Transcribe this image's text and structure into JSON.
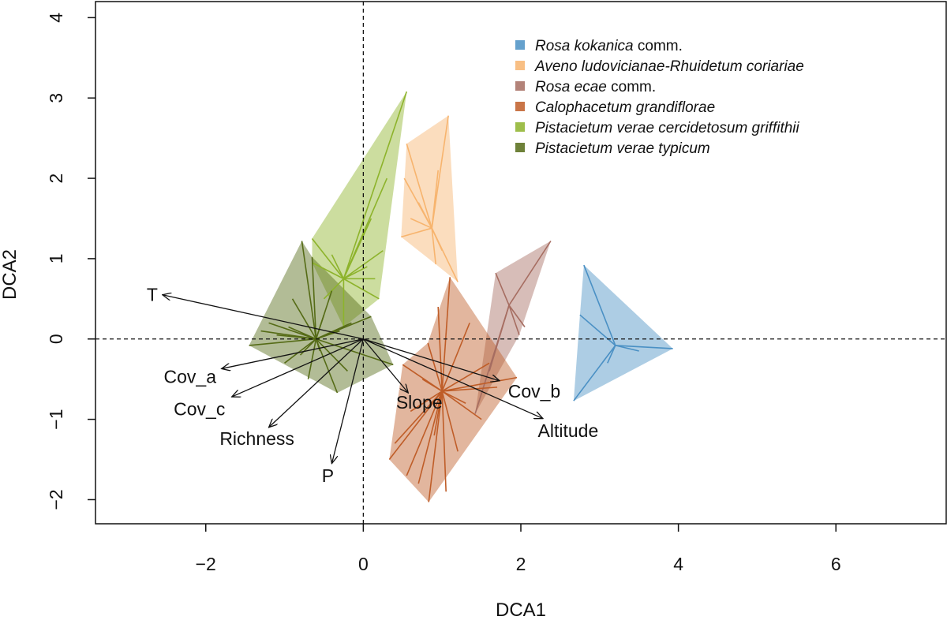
{
  "chart_data": {
    "type": "scatter",
    "subtype": "DCA ordination biplot with group convex hulls, spider lines to centroids and environmental vectors",
    "title": "",
    "xlabel": "DCA1",
    "ylabel": "DCA2",
    "xlim": [
      -3.4,
      7.4
    ],
    "ylim": [
      -2.3,
      4.2
    ],
    "xticks": [
      -2,
      0,
      2,
      4,
      6
    ],
    "yticks": [
      -2,
      -1,
      0,
      1,
      2,
      3,
      4
    ],
    "xtick_labels": [
      "−2",
      "0",
      "2",
      "4",
      "6"
    ],
    "ytick_labels": [
      "−2",
      "−1",
      "0",
      "1",
      "2",
      "3",
      "4"
    ],
    "grid": false,
    "reference_lines": [
      {
        "axis": "x",
        "value": 0,
        "style": "dashed"
      },
      {
        "axis": "y",
        "value": 0,
        "style": "dashed"
      }
    ],
    "legend": {
      "position": "top-right",
      "entries": [
        {
          "italic": "Rosa kokanica",
          "rest": " comm."
        },
        {
          "italic": "Aveno ludovicianae-Rhuidetum coriariae",
          "rest": ""
        },
        {
          "italic": "Rosa ecae",
          "rest": " comm."
        },
        {
          "italic": "Calophacetum grandiflorae",
          "rest": ""
        },
        {
          "italic": "Pistacietum verae cercidetosum griffithii",
          "rest": ""
        },
        {
          "italic": "Pistacietum verae typicum",
          "rest": ""
        }
      ]
    },
    "groups": [
      {
        "color": "#4a90c4",
        "centroid": [
          3.2,
          -0.08
        ],
        "hull": [
          [
            2.8,
            0.92
          ],
          [
            3.93,
            -0.12
          ],
          [
            2.67,
            -0.77
          ],
          [
            2.75,
            0.3
          ]
        ],
        "points": [
          [
            2.8,
            0.92
          ],
          [
            3.93,
            -0.12
          ],
          [
            2.67,
            -0.77
          ],
          [
            2.75,
            0.3
          ],
          [
            3.5,
            -0.15
          ],
          [
            3.1,
            -0.3
          ]
        ]
      },
      {
        "color": "#f7b46e",
        "centroid": [
          0.87,
          1.38
        ],
        "hull": [
          [
            0.55,
            2.43
          ],
          [
            1.08,
            2.78
          ],
          [
            1.2,
            0.71
          ],
          [
            0.92,
            0.93
          ],
          [
            0.48,
            1.27
          ]
        ],
        "points": [
          [
            0.55,
            2.43
          ],
          [
            1.08,
            2.78
          ],
          [
            1.2,
            0.71
          ],
          [
            0.92,
            0.93
          ],
          [
            0.48,
            1.27
          ],
          [
            0.52,
            2.0
          ],
          [
            0.7,
            1.7
          ],
          [
            1.0,
            1.1
          ],
          [
            0.6,
            1.5
          ],
          [
            0.95,
            2.1
          ]
        ]
      },
      {
        "color": "#a66d61",
        "centroid": [
          1.85,
          0.42
        ],
        "hull": [
          [
            1.68,
            0.82
          ],
          [
            2.38,
            1.22
          ],
          [
            1.98,
            0.05
          ],
          [
            1.42,
            -0.93
          ]
        ],
        "points": [
          [
            1.68,
            0.82
          ],
          [
            2.38,
            1.22
          ],
          [
            1.98,
            0.05
          ],
          [
            1.42,
            -0.93
          ],
          [
            2.05,
            0.15
          ],
          [
            1.6,
            -0.4
          ]
        ]
      },
      {
        "color": "#bf5d28",
        "centroid": [
          1.0,
          -0.65
        ],
        "hull": [
          [
            1.1,
            0.77
          ],
          [
            1.95,
            -0.48
          ],
          [
            0.83,
            -2.03
          ],
          [
            0.33,
            -1.5
          ],
          [
            0.5,
            -0.32
          ],
          [
            0.82,
            -0.05
          ]
        ],
        "points": [
          [
            1.1,
            0.77
          ],
          [
            1.95,
            -0.48
          ],
          [
            0.83,
            -2.03
          ],
          [
            0.33,
            -1.5
          ],
          [
            0.5,
            -0.32
          ],
          [
            0.82,
            -0.05
          ],
          [
            0.4,
            -1.3
          ],
          [
            0.55,
            -1.7
          ],
          [
            0.7,
            -1.8
          ],
          [
            1.05,
            -1.9
          ],
          [
            1.2,
            -1.4
          ],
          [
            1.5,
            -1.0
          ],
          [
            1.7,
            -0.6
          ],
          [
            1.35,
            0.2
          ],
          [
            0.95,
            0.4
          ],
          [
            0.6,
            -0.9
          ],
          [
            0.9,
            -1.2
          ],
          [
            1.3,
            -0.8
          ],
          [
            1.6,
            -0.3
          ],
          [
            0.75,
            -0.5
          ]
        ]
      },
      {
        "color": "#8db32b",
        "centroid": [
          -0.25,
          0.75
        ],
        "hull": [
          [
            -0.65,
            1.25
          ],
          [
            0.55,
            3.08
          ],
          [
            0.2,
            0.5
          ],
          [
            -0.25,
            0.15
          ],
          [
            -0.65,
            0.95
          ]
        ],
        "points": [
          [
            -0.65,
            1.25
          ],
          [
            0.55,
            3.08
          ],
          [
            0.2,
            0.5
          ],
          [
            -0.25,
            0.15
          ],
          [
            -0.65,
            0.95
          ],
          [
            0.3,
            2.0
          ],
          [
            0.1,
            1.5
          ],
          [
            -0.4,
            1.05
          ],
          [
            0.05,
            0.9
          ],
          [
            0.25,
            1.1
          ],
          [
            -0.5,
            0.5
          ],
          [
            0.15,
            0.75
          ]
        ]
      },
      {
        "color": "#556b16",
        "centroid": [
          -0.6,
          0.0
        ],
        "hull": [
          [
            -0.78,
            1.22
          ],
          [
            -0.65,
            1.02
          ],
          [
            0.1,
            0.28
          ],
          [
            0.38,
            -0.32
          ],
          [
            -0.33,
            -0.67
          ],
          [
            -1.45,
            -0.08
          ]
        ],
        "points": [
          [
            -0.78,
            1.22
          ],
          [
            -0.65,
            1.02
          ],
          [
            0.1,
            0.28
          ],
          [
            0.38,
            -0.32
          ],
          [
            -0.33,
            -0.67
          ],
          [
            -1.45,
            -0.08
          ],
          [
            -1.2,
            0.2
          ],
          [
            -1.0,
            -0.3
          ],
          [
            -0.9,
            0.5
          ],
          [
            -0.5,
            0.3
          ],
          [
            -0.2,
            -0.4
          ],
          [
            -0.8,
            -0.2
          ],
          [
            -1.1,
            0.05
          ],
          [
            -0.4,
            0.6
          ],
          [
            -0.7,
            -0.5
          ],
          [
            -0.3,
            0.1
          ],
          [
            -1.3,
            0.1
          ],
          [
            -0.95,
            0.15
          ],
          [
            -0.55,
            -0.15
          ],
          [
            -0.15,
            0.2
          ]
        ]
      }
    ],
    "vectors": [
      {
        "label": "T",
        "end": [
          -2.55,
          0.55
        ],
        "label_at": [
          -2.68,
          0.55
        ]
      },
      {
        "label": "Cov_a",
        "end": [
          -1.8,
          -0.37
        ],
        "label_at": [
          -2.2,
          -0.47
        ]
      },
      {
        "label": "Cov_c",
        "end": [
          -1.67,
          -0.72
        ],
        "label_at": [
          -2.08,
          -0.87
        ]
      },
      {
        "label": "Richness",
        "end": [
          -1.2,
          -1.1
        ],
        "label_at": [
          -1.35,
          -1.24
        ]
      },
      {
        "label": "P",
        "end": [
          -0.4,
          -1.55
        ],
        "label_at": [
          -0.45,
          -1.7
        ]
      },
      {
        "label": "Slope",
        "end": [
          0.57,
          -0.67
        ],
        "label_at": [
          0.71,
          -0.79
        ]
      },
      {
        "label": "Cov_b",
        "end": [
          1.73,
          -0.52
        ],
        "label_at": [
          2.17,
          -0.65
        ]
      },
      {
        "label": "Altitude",
        "end": [
          2.28,
          -0.99
        ],
        "label_at": [
          2.6,
          -1.14
        ]
      }
    ]
  }
}
